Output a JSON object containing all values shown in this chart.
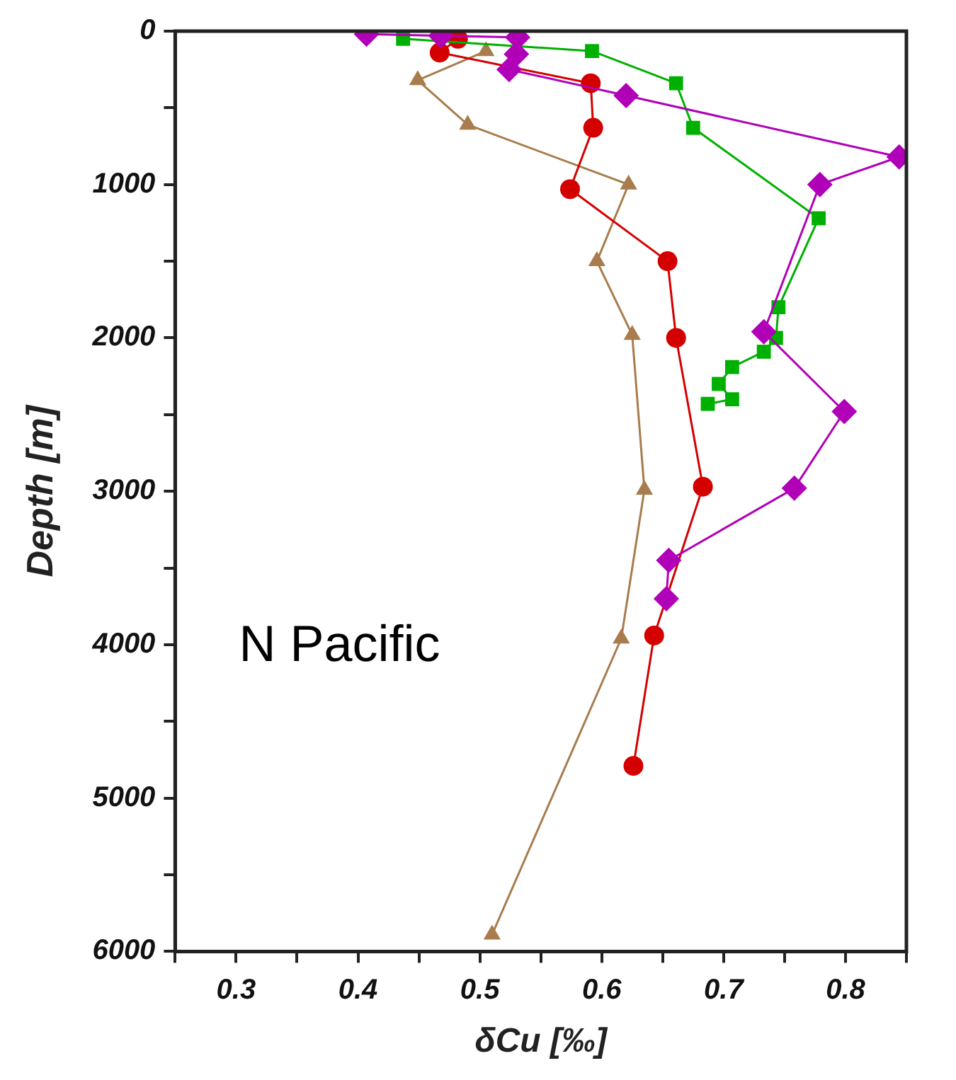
{
  "chart_data": {
    "type": "line",
    "xlabel": "δCu [‰]",
    "ylabel": "Depth [m]",
    "annotations": [
      "N Pacific"
    ],
    "xlim": [
      0.25,
      0.85
    ],
    "ylim": [
      6000,
      0
    ],
    "xticks": [
      {
        "value": 0.25,
        "label": null
      },
      0.3,
      {
        "value": 0.35,
        "label": null
      },
      0.4,
      {
        "value": 0.45,
        "label": null
      },
      0.5,
      {
        "value": 0.55,
        "label": null
      },
      0.6,
      {
        "value": 0.65,
        "label": null
      },
      0.7,
      {
        "value": 0.75,
        "label": null
      },
      0.8,
      {
        "value": 0.85,
        "label": null
      }
    ],
    "yticks": [
      0,
      {
        "value": 500,
        "label": null
      },
      1000,
      {
        "value": 1500,
        "label": null
      },
      2000,
      {
        "value": 2500,
        "label": null
      },
      3000,
      {
        "value": 3500,
        "label": null
      },
      4000,
      {
        "value": 4500,
        "label": null
      },
      5000,
      {
        "value": 5500,
        "label": null
      },
      6000
    ],
    "grid": false,
    "legend": false,
    "line_style": "solid",
    "series": [
      {
        "color": "#b000b8",
        "marker": "diamond",
        "x": [
          0.407,
          0.468,
          0.531,
          0.53,
          0.524,
          0.62,
          0.844,
          0.779,
          0.733,
          0.799,
          0.758,
          0.655,
          0.653
        ],
        "values": [
          20,
          30,
          40,
          150,
          250,
          420,
          820,
          1000,
          1960,
          2480,
          2980,
          3450,
          3700
        ]
      },
      {
        "color": "#00b000",
        "marker": "square",
        "x": [
          0.437,
          0.592,
          0.661,
          0.675,
          0.778,
          0.745,
          0.743,
          0.733,
          0.707,
          0.696,
          0.707,
          0.687
        ],
        "values": [
          50,
          130,
          340,
          630,
          1220,
          1800,
          2000,
          2090,
          2190,
          2300,
          2400,
          2430
        ]
      },
      {
        "color": "#d40000",
        "marker": "circle",
        "x": [
          0.482,
          0.467,
          0.591,
          0.593,
          0.574,
          0.654,
          0.661,
          0.683,
          0.643,
          0.626
        ],
        "values": [
          50,
          140,
          340,
          630,
          1030,
          1500,
          2000,
          2970,
          3940,
          4790
        ]
      },
      {
        "color": "#a87c4c",
        "marker": "triangle",
        "x": [
          0.505,
          0.449,
          0.49,
          0.622,
          0.596,
          0.625,
          0.635,
          0.616,
          0.51
        ],
        "values": [
          130,
          320,
          610,
          1000,
          1500,
          1980,
          2990,
          3960,
          5890
        ]
      }
    ]
  }
}
